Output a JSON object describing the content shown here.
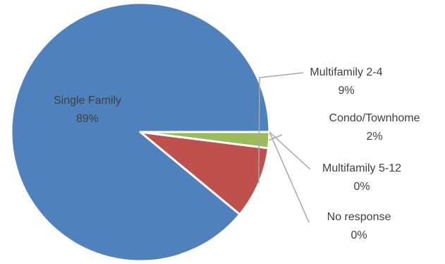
{
  "chart_data": {
    "type": "pie",
    "title": "",
    "slices": [
      {
        "label": "Single Family",
        "value": 89,
        "display": "89%",
        "color": "#4F81BD"
      },
      {
        "label": "Multifamily 2-4",
        "value": 9,
        "display": "9%",
        "color": "#C0504D"
      },
      {
        "label": "Condo/Townhome",
        "value": 2,
        "display": "2%",
        "color": "#9BBB59"
      },
      {
        "label": "Multifamily 5-12",
        "value": 0,
        "display": "0%",
        "color": "#8064A2"
      },
      {
        "label": "No response",
        "value": 0,
        "display": "0%",
        "color": "#4BACC6"
      }
    ],
    "legend": "none",
    "leader_line_color": "#a6a6a6"
  }
}
